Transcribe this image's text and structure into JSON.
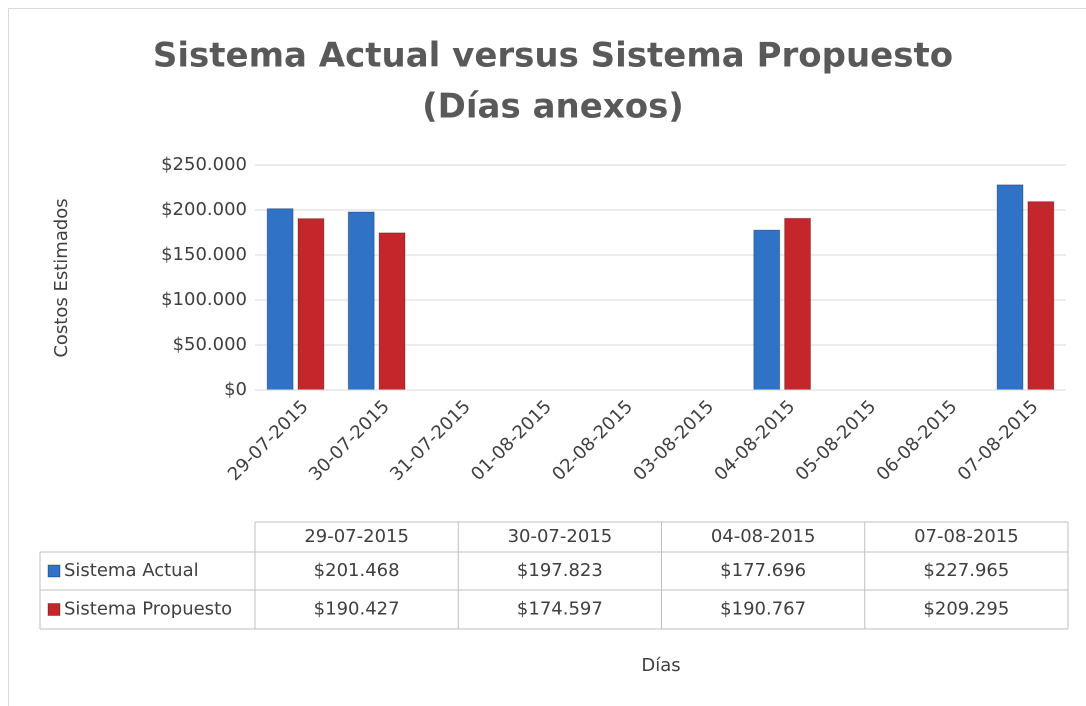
{
  "chart_data": {
    "type": "bar",
    "title": "Sistema Actual versus Sistema Propuesto",
    "subtitle": "(Días anexos)",
    "x_label": "Días",
    "y_label": "Costos Estimados",
    "categories": [
      "29-07-2015",
      "30-07-2015",
      "31-07-2015",
      "01-08-2015",
      "02-08-2015",
      "03-08-2015",
      "04-08-2015",
      "05-08-2015",
      "06-08-2015",
      "07-08-2015"
    ],
    "series": [
      {
        "name": "Sistema Actual",
        "color": "#2f72c6",
        "values": [
          201468,
          197823,
          null,
          null,
          null,
          null,
          177696,
          null,
          null,
          227965
        ],
        "value_labels": [
          "$201.468",
          "$197.823",
          null,
          null,
          null,
          null,
          "$177.696",
          null,
          null,
          "$227.965"
        ]
      },
      {
        "name": "Sistema Propuesto",
        "color": "#c4262c",
        "values": [
          190427,
          174597,
          null,
          null,
          null,
          null,
          190767,
          null,
          null,
          209295
        ],
        "value_labels": [
          "$190.427",
          "$174.597",
          null,
          null,
          null,
          null,
          "$190.767",
          null,
          null,
          "$209.295"
        ]
      }
    ],
    "ylim": [
      0,
      250000
    ],
    "yticks": [
      {
        "value": 0,
        "label": "$0"
      },
      {
        "value": 50000,
        "label": "$50.000"
      },
      {
        "value": 100000,
        "label": "$100.000"
      },
      {
        "value": 150000,
        "label": "$150.000"
      },
      {
        "value": 200000,
        "label": "$200.000"
      },
      {
        "value": 250000,
        "label": "$250.000"
      }
    ],
    "grid": true,
    "data_table": true
  }
}
